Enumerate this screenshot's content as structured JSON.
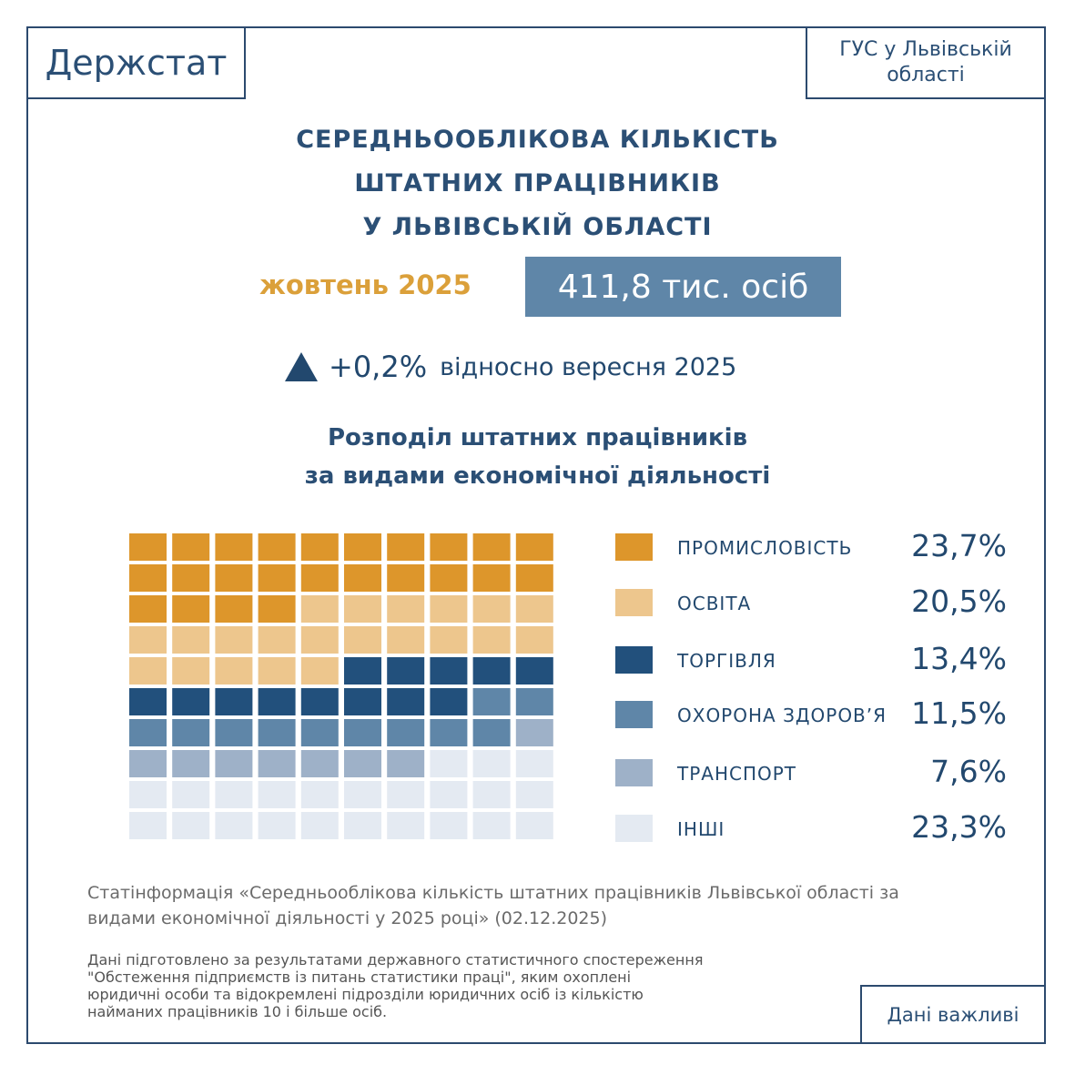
{
  "header": {
    "logo": "Держстат",
    "office": "ГУС у Львівській області"
  },
  "title_lines": [
    "СЕРЕДНЬООБЛІКОВА КІЛЬКІСТЬ",
    "ШТАТНИХ ПРАЦІВНИКІВ",
    "У ЛЬВІВСЬКІЙ ОБЛАСТІ"
  ],
  "period": "жовтень 2025",
  "total": "411,8 тис. осіб",
  "change": {
    "value": "+0,2%",
    "text": "відносно вересня 2025"
  },
  "subtitle_lines": [
    "Розподіл штатних працівників",
    "за видами економічної діяльності"
  ],
  "chart_data": {
    "type": "waffle",
    "grid": {
      "rows": 10,
      "cols": 10
    },
    "title": "Розподіл штатних працівників за видами економічної діяльності",
    "categories": [
      "ПРОМИСЛОВІСТЬ",
      "ОСВІТА",
      "ТОРГІВЛЯ",
      "ОХОРОНА ЗДОРОВ’Я",
      "ТРАНСПОРТ",
      "ІНШІ"
    ],
    "labels": [
      "23,7%",
      "20,5%",
      "13,4%",
      "11,5%",
      "7,6%",
      "23,3%"
    ],
    "values": [
      23.7,
      20.5,
      13.4,
      11.5,
      7.6,
      23.3
    ],
    "cells": [
      24,
      21,
      13,
      11,
      8,
      23
    ],
    "colors": [
      "#dd962b",
      "#edc68d",
      "#22507c",
      "#5f86a8",
      "#9eb1c8",
      "#e4eaf2"
    ]
  },
  "source": "Статінформація «Середньооблікова кількість штатних працівників Львівської області за видами економічної діяльності у 2025 році» (02.12.2025)",
  "note": "Дані підготовлено за результатами державного статистичного спостереження \"Обстеження підприємств із питань статистики праці\", яким охоплені юридичні особи та відокремлені підрозділи юридичних осіб із кількістю найманих працівників 10 і більше осіб.",
  "footer": "Дані важливі"
}
